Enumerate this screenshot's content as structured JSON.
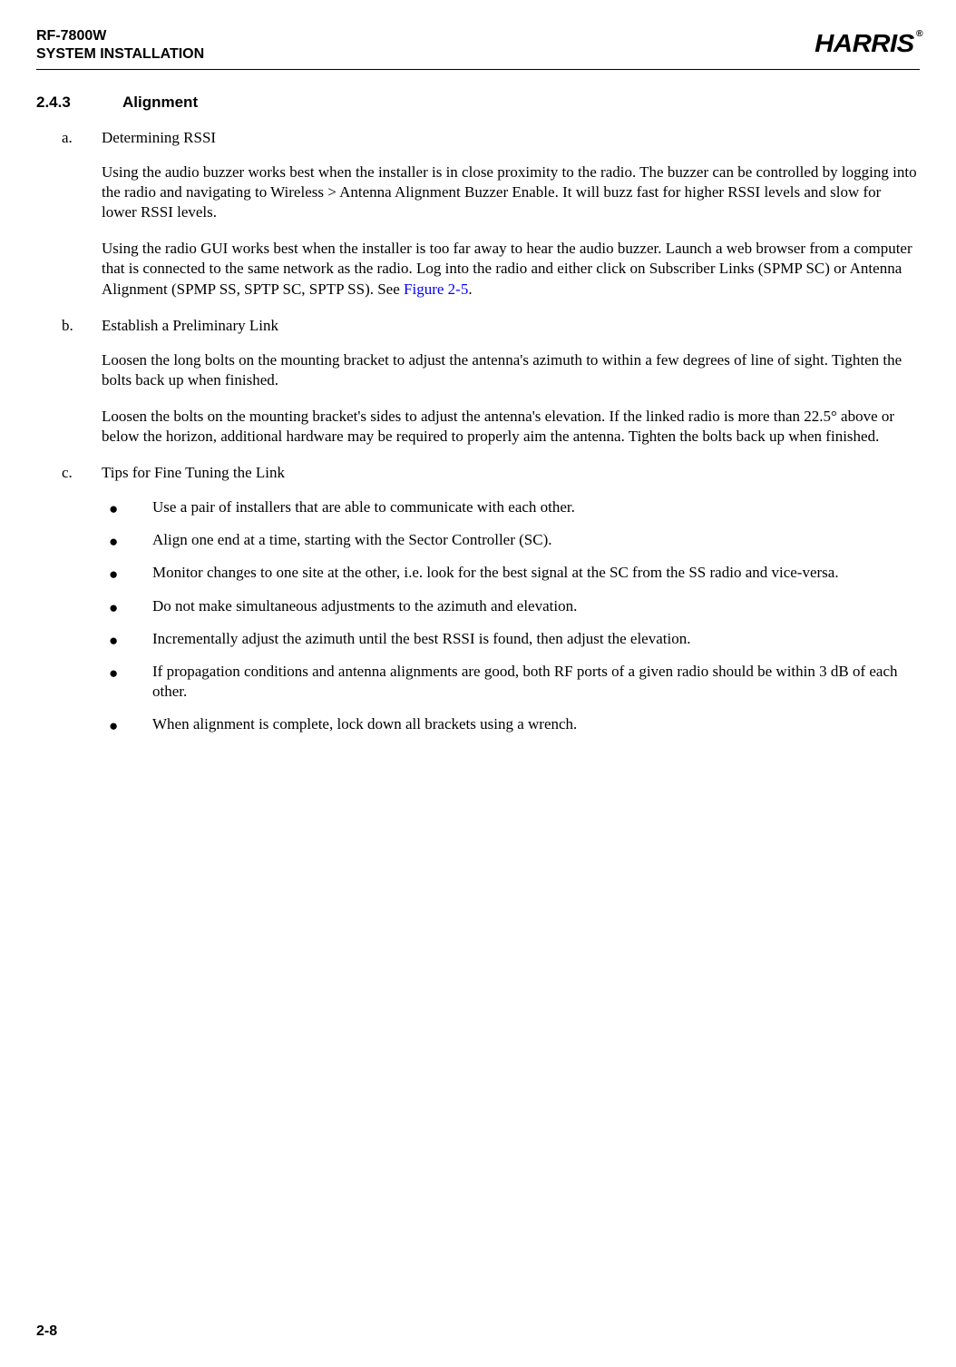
{
  "header": {
    "product": "RF-7800W",
    "subtitle": "SYSTEM INSTALLATION",
    "brand": "HARRIS",
    "registered": "®"
  },
  "section": {
    "number": "2.4.3",
    "title": "Alignment"
  },
  "items": {
    "a": {
      "marker": "a.",
      "title": "Determining RSSI",
      "p1": "Using the audio buzzer works best when the installer is in close proximity to the radio. The buzzer can be controlled by logging into the radio and navigating to Wireless > Antenna Alignment Buzzer Enable. It will buzz fast for higher RSSI levels and slow for lower RSSI levels.",
      "p2a": "Using the radio GUI works best when the installer is too far away to hear the audio buzzer. Launch a web browser from a computer that is connected to the same network as the radio. Log into the radio and either click on Subscriber Links (SPMP SC) or Antenna Alignment (SPMP SS, SPTP SC, SPTP SS). See ",
      "p2_link": "Figure 2-5",
      "p2b": "."
    },
    "b": {
      "marker": "b.",
      "title": "Establish a Preliminary Link",
      "p1": "Loosen the long bolts on the mounting bracket to adjust the antenna's azimuth to within a few degrees of line of sight. Tighten the bolts back up when finished.",
      "p2": "Loosen the bolts on the mounting bracket's sides to adjust the antenna's elevation. If the linked radio is more than 22.5° above or below the horizon, additional hardware may be required to properly aim the antenna. Tighten the bolts back up when finished."
    },
    "c": {
      "marker": "c.",
      "title": "Tips for Fine Tuning the Link",
      "bullets": [
        "Use a pair of installers that are able to communicate with each other.",
        "Align one end at a time, starting with the Sector Controller (SC).",
        "Monitor changes to one site at the other, i.e. look for the best signal at the SC from the SS radio and vice-versa.",
        "Do not make simultaneous adjustments to the azimuth and elevation.",
        "Incrementally adjust the azimuth until the best RSSI is found, then adjust the elevation.",
        "If propagation conditions and antenna alignments are good, both RF ports of a given radio should be within 3 dB of each other.",
        "When alignment is complete, lock down all brackets using a wrench."
      ]
    }
  },
  "footer": {
    "page": "2-8"
  },
  "style": {
    "link_color": "#0000ff",
    "text_color": "#000000",
    "background": "#ffffff",
    "body_font": "Times New Roman",
    "heading_font": "Arial",
    "body_fontsize_pt": 12,
    "heading_fontsize_pt": 12
  }
}
